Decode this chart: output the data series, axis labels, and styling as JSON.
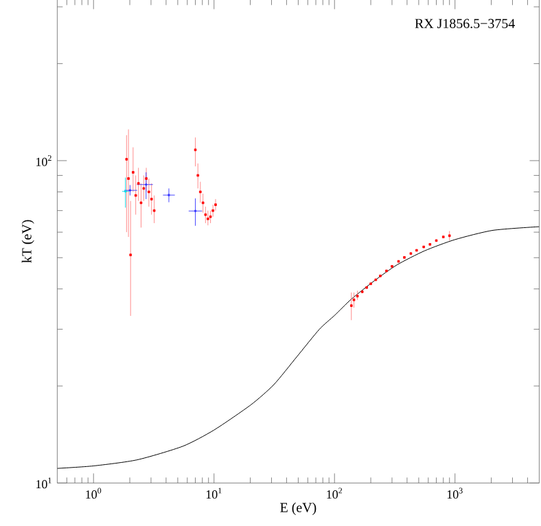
{
  "chart_data": {
    "type": "scatter",
    "log": "xy",
    "xlabel": "E (eV)",
    "ylabel": "kT (eV)",
    "annotations": [
      "RX J1856.5−3754"
    ],
    "xlim": [
      0.5,
      5000
    ],
    "ylim": [
      10,
      316
    ],
    "xticks": [
      {
        "value": 1,
        "label": "10$^{0}$"
      },
      {
        "value": 10,
        "label": "10$^{1}$"
      },
      {
        "value": 100,
        "label": "10$^{2}$"
      },
      {
        "value": 1000,
        "label": "10$^{3}$"
      }
    ],
    "yticks": [
      {
        "value": 10,
        "label": "10$^{1}$"
      },
      {
        "value": 100,
        "label": "10$^{2}$"
      }
    ],
    "series": [
      {
        "type": "line",
        "color": "#000000",
        "marker": "none",
        "x": [
          0.5,
          1,
          2.3,
          5.5,
          10,
          20.3,
          31.4,
          48.5,
          75,
          100,
          138,
          214,
          330,
          558,
          1000,
          2065,
          5000
        ],
        "values": [
          11.1,
          11.3,
          11.8,
          13.0,
          14.6,
          17.5,
          20.2,
          24.6,
          30.0,
          33.1,
          37.2,
          42.4,
          47.5,
          52.5,
          56.9,
          60.8,
          62.4
        ]
      },
      {
        "color": "#ff0000",
        "marker": "square",
        "x": [
          1.88,
          1.95,
          2.03,
          2.13,
          2.24,
          2.36,
          2.48,
          2.61,
          2.74,
          2.88,
          3.03,
          3.19,
          7.0,
          7.35,
          7.7,
          8.1,
          8.5,
          8.9,
          9.35,
          9.8,
          10.3,
          138,
          145,
          155,
          170,
          185,
          200,
          220,
          240,
          270,
          300,
          340,
          380,
          430,
          480,
          550,
          620,
          700,
          800,
          900
        ],
        "values": [
          101,
          88,
          51,
          92,
          78,
          85,
          74,
          82,
          88,
          80,
          76,
          70,
          108,
          90,
          80,
          74,
          68,
          66,
          67,
          70,
          73,
          35.5,
          37,
          38,
          39.2,
          40.4,
          41.5,
          42.7,
          43.9,
          45.5,
          47,
          48.7,
          50.1,
          51.5,
          52.7,
          54,
          55,
          56.5,
          58,
          58.5
        ],
        "errors": [
          [
            60,
            120
          ],
          [
            58,
            125
          ],
          [
            33,
            75
          ],
          [
            80,
            110
          ],
          [
            68,
            90
          ],
          [
            75,
            95
          ],
          [
            62,
            85
          ],
          [
            75,
            90
          ],
          [
            80,
            95
          ],
          [
            72,
            88
          ],
          [
            68,
            85
          ],
          [
            64,
            78
          ],
          [
            96,
            118
          ],
          [
            82,
            98
          ],
          [
            74,
            86
          ],
          [
            69,
            79
          ],
          [
            64,
            72
          ],
          [
            63,
            70
          ],
          [
            64,
            70
          ],
          [
            67,
            73
          ],
          [
            70,
            76
          ],
          [
            32,
            39
          ],
          [
            35,
            39
          ],
          [
            37,
            39.5
          ],
          null,
          null,
          null,
          null,
          null,
          null,
          null,
          null,
          null,
          null,
          null,
          null,
          null,
          null,
          null,
          [
            56.5,
            60.5
          ]
        ]
      },
      {
        "color": "#3333ff",
        "marker": "none",
        "x": [
          2.01,
          2.73,
          4.22,
          7.0
        ],
        "values": [
          80.9,
          84.3,
          78.2,
          69.8
        ],
        "errors": [
          [
            78,
            84
          ],
          [
            76,
            92
          ],
          [
            74.3,
            82
          ],
          [
            62.8,
            76.4
          ]
        ],
        "xerrors": [
          [
            1.8,
            2.3
          ],
          [
            2.29,
            3.11
          ],
          [
            3.77,
            4.73
          ],
          [
            6.16,
            7.97
          ]
        ]
      },
      {
        "color": "#00d8e8",
        "marker": "none",
        "x": [
          1.84
        ],
        "values": [
          80.3
        ],
        "errors": [
          [
            71.5,
            88.6
          ]
        ],
        "xerrors": [
          [
            1.73,
            1.97
          ]
        ]
      }
    ]
  }
}
